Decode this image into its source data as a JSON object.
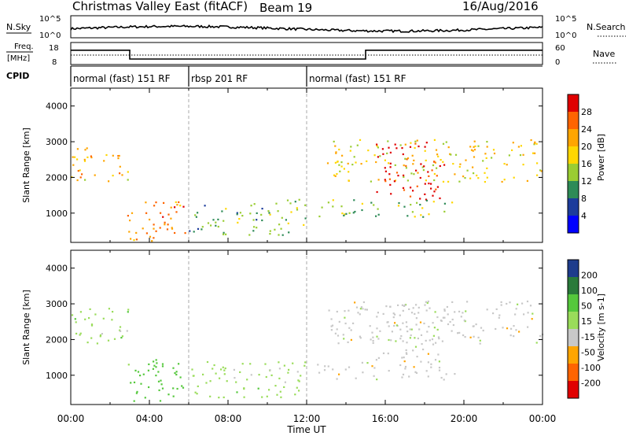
{
  "header": {
    "title": "Christmas Valley East (fitACF)",
    "beam": "Beam 19",
    "date": "16/Aug/2016"
  },
  "noise_panel": {
    "left_label": "N.Sky",
    "right_label": "N.Search",
    "tick_top": "10^5",
    "tick_bottom": "10^0",
    "tick_top_r": "10^5",
    "tick_bottom_r": "10^0"
  },
  "freq_panel": {
    "left_label_1": "Freq.",
    "left_label_2": "[MHz]",
    "right_label": "Nave",
    "ticks_left": [
      "18",
      "8"
    ],
    "ticks_right": [
      "60",
      "0"
    ]
  },
  "cpid_panel": {
    "label": "CPID",
    "segments": [
      {
        "label": "normal (fast) 151 RF",
        "start_h": 0
      },
      {
        "label": "rbsp 201 RF",
        "start_h": 6
      },
      {
        "label": "normal (fast) 151 RF",
        "start_h": 12
      }
    ]
  },
  "power_panel": {
    "ylabel": "Slant Range [km]",
    "colorbar_label": "Power [dB]",
    "colorbar_ticks": [
      "28",
      "24",
      "20",
      "16",
      "12",
      "8",
      "4"
    ],
    "colors": [
      "#e00000",
      "#ff6400",
      "#ffa500",
      "#ffd700",
      "#9acd32",
      "#2e8b57",
      "#1c3c9c",
      "#0000ff"
    ]
  },
  "velocity_panel": {
    "ylabel": "Slant Range [km]",
    "colorbar_label": "Velocity [m s-1]",
    "colorbar_ticks": [
      "200",
      "100",
      "50",
      "15",
      "-15",
      "-50",
      "-100",
      "-200"
    ],
    "colors": [
      "#1e3c8c",
      "#2a7a3a",
      "#55c83c",
      "#9adc5a",
      "#c8c8c8",
      "#ffa500",
      "#ff6400",
      "#e00000"
    ]
  },
  "xaxis": {
    "label": "Time UT",
    "ticks": [
      "00:00",
      "04:00",
      "08:00",
      "12:00",
      "16:00",
      "20:00",
      "00:00"
    ]
  },
  "chart_data": {
    "type": "heatmap",
    "title": "Christmas Valley East (fitACF)",
    "xlabel": "Time UT",
    "ylabel": "Slant Range [km]",
    "xlim": [
      0,
      24
    ],
    "ylim": [
      180,
      4500
    ],
    "yticks": [
      1000,
      2000,
      3000,
      4000
    ],
    "cpid_changes_h": [
      6,
      12
    ],
    "freq_steps": [
      {
        "from_h": 0,
        "to_h": 3,
        "mhz": 14.5
      },
      {
        "from_h": 3,
        "to_h": 15,
        "mhz": 10.5
      },
      {
        "from_h": 15,
        "to_h": 24,
        "mhz": 14.5
      }
    ],
    "echo_regions": [
      {
        "name": "f-region-early",
        "t0": 0,
        "t1": 3.0,
        "r0": 1900,
        "r1": 2900,
        "power": 18,
        "velocity": 15
      },
      {
        "name": "descending-echoes",
        "t0": 2.8,
        "t1": 5.8,
        "r0": 200,
        "r1": 1500,
        "power": 22,
        "velocity": 50
      },
      {
        "name": "rbsp-echoes",
        "t0": 6.0,
        "t1": 12.0,
        "r0": 400,
        "r1": 1400,
        "power": 10,
        "velocity": 15
      },
      {
        "name": "evening-band",
        "t0": 13.0,
        "t1": 24.0,
        "r0": 1900,
        "r1": 3100,
        "power": 16,
        "velocity": -15
      },
      {
        "name": "v-shaped-echo",
        "t0": 15.5,
        "t1": 19.0,
        "r0": 1400,
        "r1": 3000,
        "power": 28,
        "velocity": -15
      },
      {
        "name": "lower-band",
        "t0": 12.5,
        "t1": 19.5,
        "r0": 900,
        "r1": 1400,
        "power": 12,
        "velocity": -15
      }
    ]
  }
}
